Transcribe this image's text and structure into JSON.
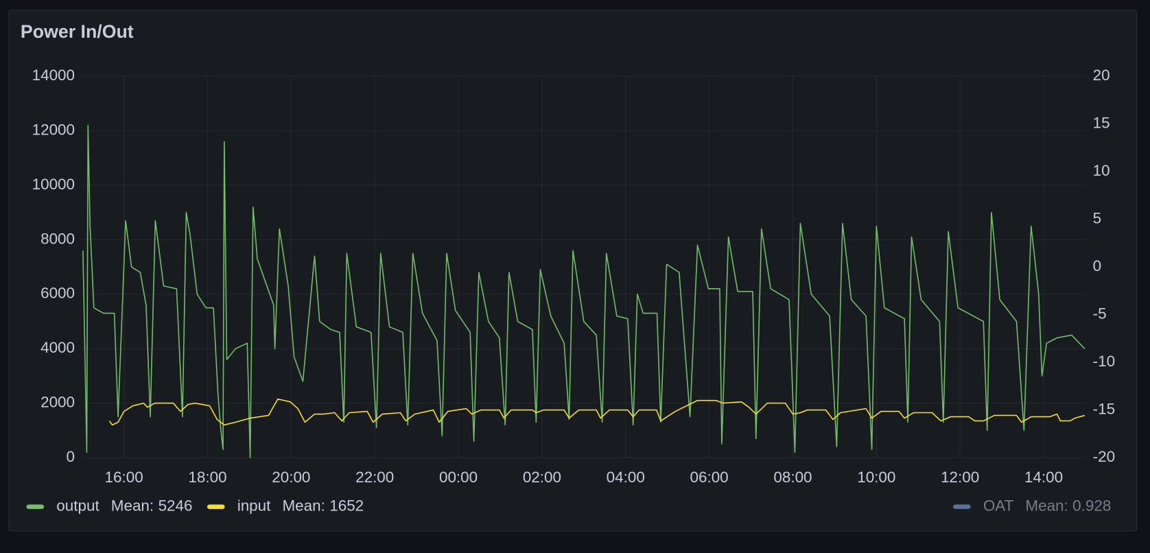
{
  "chart_data": {
    "type": "line",
    "title": "Power In/Out",
    "legend_calc": "Mean:",
    "grid": true,
    "xlim": [
      15,
      39
    ],
    "xticks": [
      {
        "value": 16,
        "label": "16:00"
      },
      {
        "value": 18,
        "label": "18:00"
      },
      {
        "value": 20,
        "label": "20:00"
      },
      {
        "value": 22,
        "label": "22:00"
      },
      {
        "value": 24,
        "label": "00:00"
      },
      {
        "value": 26,
        "label": "02:00"
      },
      {
        "value": 28,
        "label": "04:00"
      },
      {
        "value": 30,
        "label": "06:00"
      },
      {
        "value": 32,
        "label": "08:00"
      },
      {
        "value": 34,
        "label": "10:00"
      },
      {
        "value": 36,
        "label": "12:00"
      },
      {
        "value": 38,
        "label": "14:00"
      }
    ],
    "ylim": [
      0,
      14000
    ],
    "yticks": [
      0,
      2000,
      4000,
      6000,
      8000,
      10000,
      12000,
      14000
    ],
    "y2lim": [
      -20,
      20
    ],
    "y2ticks": [
      -20,
      -15,
      -10,
      -5,
      0,
      5,
      10,
      15,
      20
    ],
    "series": [
      {
        "name": "output",
        "color": "#73bf69",
        "mean": 5246,
        "x": [
          15.02,
          15.11,
          15.14,
          15.19,
          15.28,
          15.51,
          15.77,
          15.86,
          16.04,
          16.18,
          16.39,
          16.53,
          16.63,
          16.75,
          16.95,
          17.26,
          17.4,
          17.49,
          17.58,
          17.75,
          17.96,
          18.14,
          18.25,
          18.32,
          18.37,
          18.4,
          18.46,
          18.67,
          18.95,
          19.02,
          19.09,
          19.19,
          19.58,
          19.61,
          19.72,
          19.93,
          20.07,
          20.28,
          20.56,
          20.68,
          20.95,
          21.16,
          21.26,
          21.33,
          21.56,
          21.91,
          22.04,
          22.14,
          22.35,
          22.67,
          22.79,
          22.91,
          23.14,
          23.49,
          23.61,
          23.72,
          23.93,
          24.28,
          24.37,
          24.49,
          24.72,
          24.98,
          25.12,
          25.21,
          25.42,
          25.77,
          25.86,
          25.96,
          26.21,
          26.53,
          26.65,
          26.74,
          27,
          27.3,
          27.44,
          27.54,
          27.79,
          28.05,
          28.18,
          28.28,
          28.42,
          28.75,
          28.84,
          28.98,
          29.28,
          29.54,
          29.72,
          29.98,
          30.25,
          30.3,
          30.46,
          30.68,
          31.04,
          31.12,
          31.25,
          31.47,
          31.91,
          32.05,
          32.18,
          32.44,
          32.88,
          33.05,
          33.19,
          33.4,
          33.75,
          33.89,
          34,
          34.19,
          34.67,
          34.75,
          34.84,
          35.07,
          35.51,
          35.6,
          35.72,
          35.95,
          36.56,
          36.65,
          36.75,
          36.95,
          37.35,
          37.53,
          37.7,
          37.88,
          37.96,
          38.07,
          38.32,
          38.67,
          38.98
        ],
        "values": [
          7600,
          200,
          12200,
          8500,
          5500,
          5300,
          5300,
          1500,
          8700,
          7000,
          6800,
          5600,
          1500,
          8700,
          6300,
          6200,
          1500,
          9000,
          8200,
          6000,
          5500,
          5500,
          2300,
          1000,
          300,
          11600,
          3600,
          4000,
          4200,
          0,
          9200,
          7300,
          5600,
          4000,
          8400,
          6300,
          3700,
          2800,
          7400,
          5000,
          4700,
          4600,
          1300,
          7500,
          4800,
          4600,
          1100,
          7500,
          4800,
          4600,
          1200,
          7500,
          5300,
          4300,
          800,
          7500,
          5400,
          4600,
          600,
          6800,
          5000,
          4400,
          1200,
          6800,
          5000,
          4700,
          1300,
          6900,
          5200,
          4200,
          1400,
          7600,
          5000,
          4500,
          1300,
          7500,
          5200,
          5100,
          1200,
          6000,
          5300,
          5300,
          1300,
          7100,
          6800,
          1500,
          7800,
          6200,
          6200,
          500,
          8100,
          6100,
          6100,
          700,
          8400,
          6200,
          5800,
          200,
          8600,
          6000,
          5200,
          400,
          8600,
          5800,
          5200,
          300,
          8500,
          5500,
          5100,
          1300,
          8100,
          5800,
          5000,
          1300,
          8300,
          5500,
          5000,
          1000,
          9000,
          5800,
          5000,
          1000,
          8500,
          6000,
          3000,
          4200,
          4400,
          4500,
          4000
        ]
      },
      {
        "name": "input",
        "color": "#fade2a",
        "mean": 1652,
        "x": [
          15.65,
          15.72,
          15.86,
          16,
          16.21,
          16.47,
          16.56,
          16.74,
          17.18,
          17.35,
          17.53,
          17.7,
          18.05,
          18.23,
          18.4,
          18.67,
          19.02,
          19.46,
          19.68,
          19.98,
          20.16,
          20.33,
          20.56,
          20.77,
          21.04,
          21.21,
          21.39,
          21.82,
          21.96,
          22.18,
          22.61,
          22.74,
          22.96,
          23.4,
          23.54,
          23.75,
          24.19,
          24.32,
          24.54,
          24.98,
          25.09,
          25.26,
          25.77,
          25.86,
          26.04,
          26.53,
          26.65,
          26.88,
          27.3,
          27.4,
          27.61,
          28.05,
          28.18,
          28.32,
          28.74,
          28.84,
          29.19,
          29.72,
          30.16,
          30.33,
          30.77,
          30.95,
          31.12,
          31.39,
          31.82,
          32,
          32.18,
          32.35,
          32.79,
          32.96,
          33.14,
          33.75,
          33.89,
          34.11,
          34.54,
          34.67,
          34.89,
          35.33,
          35.54,
          35.77,
          36.21,
          36.35,
          36.56,
          36.82,
          37.35,
          37.47,
          37.7,
          38.14,
          38.32,
          38.4,
          38.63,
          38.75,
          38.98
        ],
        "values": [
          1350,
          1200,
          1300,
          1700,
          1900,
          2000,
          1850,
          2000,
          2000,
          1700,
          1950,
          2000,
          1900,
          1400,
          1200,
          1300,
          1450,
          1550,
          2150,
          2050,
          1800,
          1300,
          1600,
          1600,
          1650,
          1350,
          1650,
          1700,
          1300,
          1600,
          1650,
          1350,
          1600,
          1750,
          1300,
          1700,
          1800,
          1600,
          1750,
          1750,
          1450,
          1750,
          1750,
          1650,
          1750,
          1750,
          1450,
          1750,
          1750,
          1450,
          1750,
          1750,
          1500,
          1750,
          1750,
          1350,
          1700,
          2100,
          2100,
          2000,
          2050,
          1850,
          1600,
          2000,
          2000,
          1600,
          1650,
          1750,
          1750,
          1400,
          1650,
          1800,
          1450,
          1700,
          1700,
          1450,
          1650,
          1650,
          1350,
          1500,
          1500,
          1350,
          1350,
          1550,
          1550,
          1300,
          1500,
          1500,
          1600,
          1350,
          1350,
          1450,
          1550
        ]
      },
      {
        "name": "OAT",
        "color": "#8ab8ff",
        "mean": 0.928,
        "axis": "y2",
        "hidden": true
      }
    ]
  }
}
